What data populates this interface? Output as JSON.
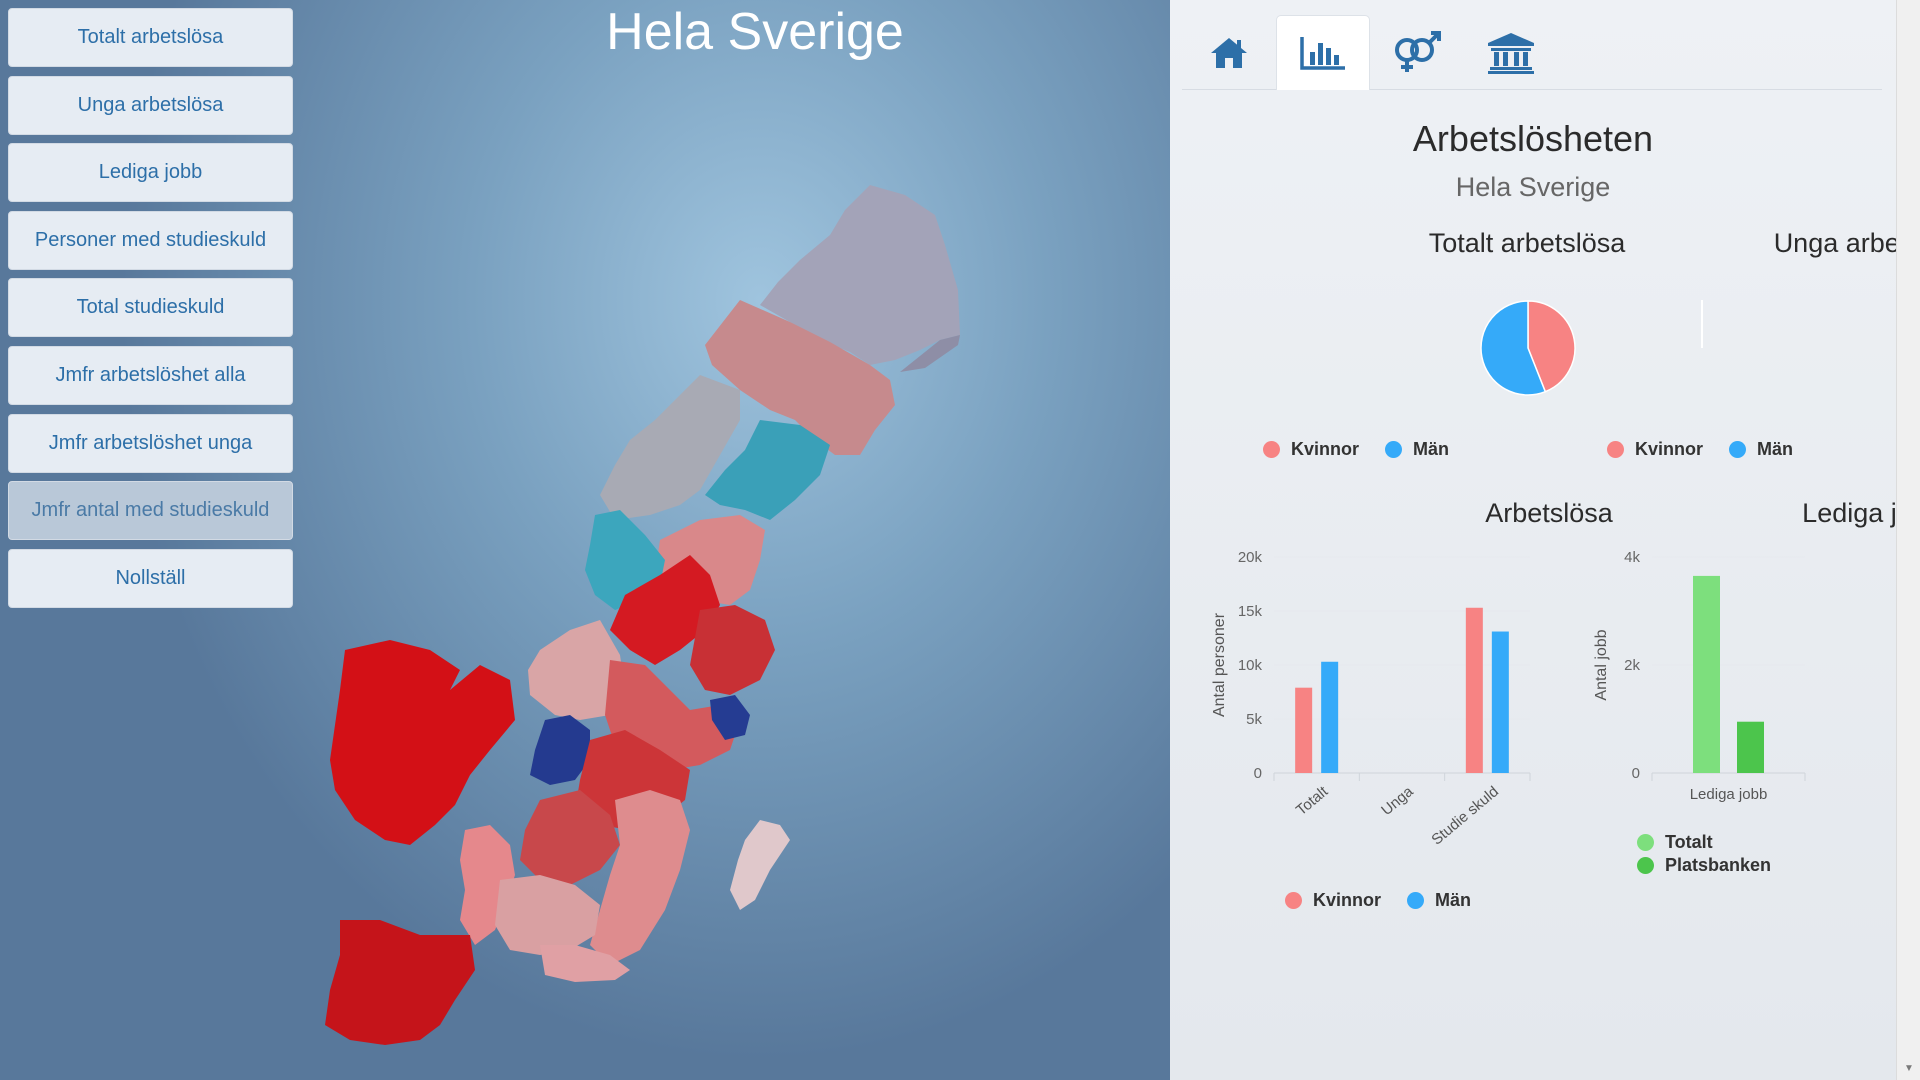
{
  "map": {
    "title": "Hela Sverige"
  },
  "menu": [
    {
      "label": "Totalt arbetslösa"
    },
    {
      "label": "Unga arbetslösa"
    },
    {
      "label": "Lediga jobb"
    },
    {
      "label": "Personer med studieskuld"
    },
    {
      "label": "Total studieskuld"
    },
    {
      "label": "Jmfr arbetslöshet alla"
    },
    {
      "label": "Jmfr arbetslöshet unga"
    },
    {
      "label": "Jmfr antal med studieskuld",
      "active": true
    },
    {
      "label": "Nollställ"
    }
  ],
  "tabs": [
    {
      "icon": "home-icon"
    },
    {
      "icon": "bar-chart-icon",
      "active": true
    },
    {
      "icon": "gender-icon"
    },
    {
      "icon": "bank-icon"
    }
  ],
  "panel": {
    "title": "Arbetslösheten",
    "subtitle": "Hela Sverige"
  },
  "colors": {
    "kvinnor": "#f78383",
    "man": "#35aaf9",
    "totalt": "#7ddf7d",
    "platsbanken": "#4cc54c",
    "accent": "#2d6fa8"
  },
  "chart_data": [
    {
      "type": "pie",
      "title": "Totalt arbetslösa",
      "slices": [
        {
          "label": "Kvinnor",
          "value": 44
        },
        {
          "label": "Män",
          "value": 56
        }
      ],
      "legend": [
        "Kvinnor",
        "Män"
      ]
    },
    {
      "type": "pie",
      "title": "Unga arbetslösa",
      "slices": [],
      "legend": [
        "Kvinnor",
        "Män"
      ]
    },
    {
      "type": "bar",
      "title": "Arbetslösa",
      "categories": [
        "Totalt",
        "Unga",
        "Studie skuld"
      ],
      "series": [
        {
          "name": "Kvinnor",
          "values": [
            7900,
            0,
            15300
          ]
        },
        {
          "name": "Män",
          "values": [
            10300,
            0,
            13100
          ]
        }
      ],
      "ylabel": "Antal personer",
      "ylim": [
        0,
        20000
      ],
      "yticks": [
        "0",
        "5k",
        "10k",
        "15k",
        "20k"
      ],
      "legend": [
        "Kvinnor",
        "Män"
      ]
    },
    {
      "type": "bar",
      "title": "Lediga jobb",
      "categories": [
        "Lediga jobb"
      ],
      "series": [
        {
          "name": "Totalt",
          "values": [
            3650
          ]
        },
        {
          "name": "Platsbanken",
          "values": [
            950
          ]
        }
      ],
      "ylabel": "Antal jobb",
      "ylim": [
        0,
        4000
      ],
      "yticks": [
        "0",
        "2k",
        "4k"
      ],
      "legend": [
        "Totalt",
        "Platsbanken"
      ]
    }
  ]
}
